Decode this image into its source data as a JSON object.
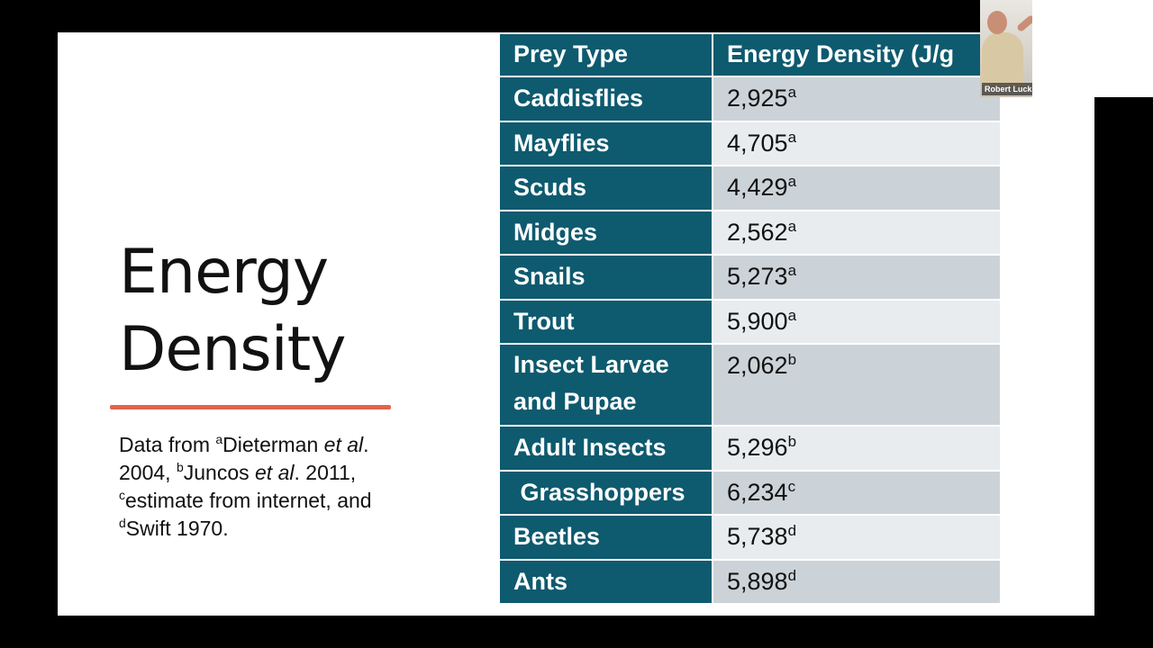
{
  "slide": {
    "title_line1": "Energy",
    "title_line2": "Density",
    "source": {
      "part1": "Data from ",
      "sup_a": "a",
      "part2": "Dieterman ",
      "et_al_1": "et al",
      "part3": ". 2004, ",
      "sup_b": "b",
      "part4": "Juncos ",
      "et_al_2": "et al",
      "part5": ". 2011, ",
      "sup_c": "c",
      "part6": "estimate from internet, and ",
      "sup_d": "d",
      "part7": "Swift 1970."
    },
    "table": {
      "headers": [
        "Prey Type",
        "Energy Density (J/g"
      ],
      "rows": [
        {
          "prey": "Caddisflies",
          "value": "2,925",
          "sup": "a"
        },
        {
          "prey": "Mayflies",
          "value": "4,705",
          "sup": "a"
        },
        {
          "prey": "Scuds",
          "value": "4,429",
          "sup": "a"
        },
        {
          "prey": "Midges",
          "value": "2,562",
          "sup": "a"
        },
        {
          "prey": "Snails",
          "value": "5,273",
          "sup": "a"
        },
        {
          "prey": "Trout",
          "value": "5,900",
          "sup": "a"
        },
        {
          "prey": "Insect Larvae and Pupae",
          "value": "2,062",
          "sup": "b"
        },
        {
          "prey": "Adult Insects",
          "value": "5,296",
          "sup": "b"
        },
        {
          "prey": " Grasshoppers",
          "value": "6,234",
          "sup": "c"
        },
        {
          "prey": "Beetles",
          "value": "5,738",
          "sup": "d"
        },
        {
          "prey": "Ants",
          "value": "5,898",
          "sup": "d"
        }
      ]
    }
  },
  "participant": {
    "name": "Robert Luck"
  },
  "colors": {
    "header_bg": "#0e5a6f",
    "row_odd": "#ccd3d8",
    "row_even": "#e8ecef",
    "accent_rule": "#e0654b"
  }
}
